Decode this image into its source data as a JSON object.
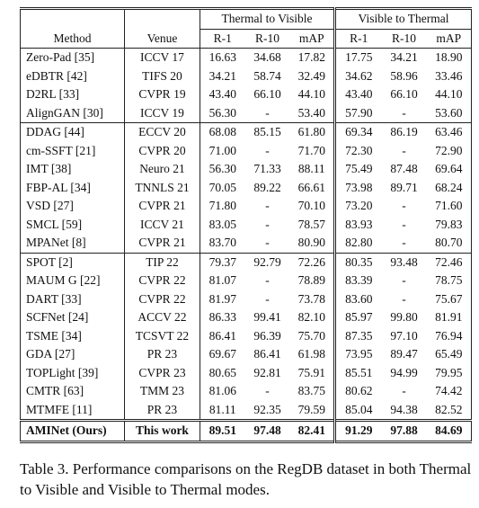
{
  "table": {
    "group_headers": [
      "Thermal to Visible",
      "Visible to Thermal"
    ],
    "columns": [
      "Method",
      "Venue",
      "R-1",
      "R-10",
      "mAP",
      "R-1",
      "R-10",
      "mAP"
    ],
    "sections": [
      [
        [
          "Zero-Pad [35]",
          "ICCV 17",
          "16.63",
          "34.68",
          "17.82",
          "17.75",
          "34.21",
          "18.90"
        ],
        [
          "eDBTR [42]",
          "TIFS 20",
          "34.21",
          "58.74",
          "32.49",
          "34.62",
          "58.96",
          "33.46"
        ],
        [
          "D2RL [33]",
          "CVPR 19",
          "43.40",
          "66.10",
          "44.10",
          "43.40",
          "66.10",
          "44.10"
        ],
        [
          "AlignGAN [30]",
          "ICCV 19",
          "56.30",
          "-",
          "53.40",
          "57.90",
          "-",
          "53.60"
        ]
      ],
      [
        [
          "DDAG [44]",
          "ECCV 20",
          "68.08",
          "85.15",
          "61.80",
          "69.34",
          "86.19",
          "63.46"
        ],
        [
          "cm-SSFT [21]",
          "CVPR 20",
          "71.00",
          "-",
          "71.70",
          "72.30",
          "-",
          "72.90"
        ],
        [
          "IMT [38]",
          "Neuro 21",
          "56.30",
          "71.33",
          "88.11",
          "75.49",
          "87.48",
          "69.64"
        ],
        [
          "FBP-AL [34]",
          "TNNLS 21",
          "70.05",
          "89.22",
          "66.61",
          "73.98",
          "89.71",
          "68.24"
        ],
        [
          "VSD [27]",
          "CVPR 21",
          "71.80",
          "-",
          "70.10",
          "73.20",
          "-",
          "71.60"
        ],
        [
          "SMCL [59]",
          "ICCV 21",
          "83.05",
          "-",
          "78.57",
          "83.93",
          "-",
          "79.83"
        ],
        [
          "MPANet [8]",
          "CVPR 21",
          "83.70",
          "-",
          "80.90",
          "82.80",
          "-",
          "80.70"
        ]
      ],
      [
        [
          "SPOT [2]",
          "TIP 22",
          "79.37",
          "92.79",
          "72.26",
          "80.35",
          "93.48",
          "72.46"
        ],
        [
          "MAUM G [22]",
          "CVPR 22",
          "81.07",
          "-",
          "78.89",
          "83.39",
          "-",
          "78.75"
        ],
        [
          "DART [33]",
          "CVPR 22",
          "81.97",
          "-",
          "73.78",
          "83.60",
          "-",
          "75.67"
        ],
        [
          "SCFNet [24]",
          "ACCV 22",
          "86.33",
          "99.41",
          "82.10",
          "85.97",
          "99.80",
          "81.91"
        ],
        [
          "TSME [34]",
          "TCSVT 22",
          "86.41",
          "96.39",
          "75.70",
          "87.35",
          "97.10",
          "76.94"
        ],
        [
          "GDA [27]",
          "PR 23",
          "69.67",
          "86.41",
          "61.98",
          "73.95",
          "89.47",
          "65.49"
        ],
        [
          "TOPLight [39]",
          "CVPR 23",
          "80.65",
          "92.81",
          "75.91",
          "85.51",
          "94.99",
          "79.95"
        ],
        [
          "CMTR [63]",
          "TMM 23",
          "81.06",
          "-",
          "83.75",
          "80.62",
          "-",
          "74.42"
        ],
        [
          "MTMFE [11]",
          "PR 23",
          "81.11",
          "92.35",
          "79.59",
          "85.04",
          "94.38",
          "82.52"
        ]
      ]
    ],
    "ours": [
      "AMINet (Ours)",
      "This work",
      "89.51",
      "97.48",
      "82.41",
      "91.29",
      "97.88",
      "84.69"
    ]
  },
  "caption": "Table 3. Performance comparisons on the RegDB dataset in both Thermal to Visible and Visible to Thermal modes."
}
